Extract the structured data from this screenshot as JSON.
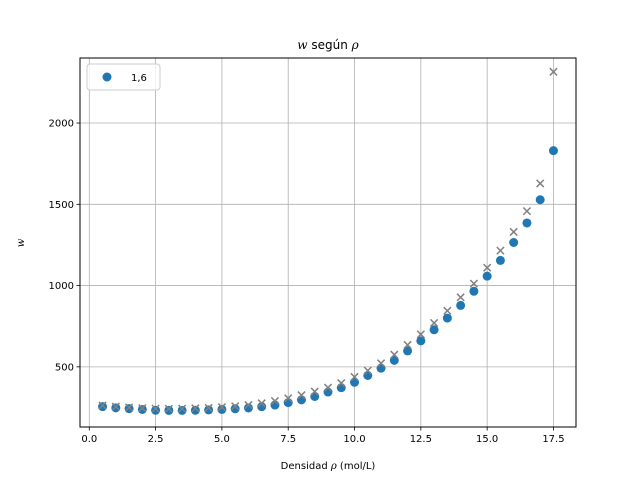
{
  "chart_data": {
    "type": "scatter",
    "title": "w según ρ",
    "title_parts": {
      "var": "w",
      "middle": " según ",
      "symbol": "ρ"
    },
    "xlabel": "Densidad ρ (mol/L)",
    "xlabel_parts": {
      "prefix": "Densidad ",
      "symbol": "ρ",
      "suffix": " (mol/L)"
    },
    "ylabel": "w",
    "xlim": [
      -0.35,
      18.35
    ],
    "ylim": [
      130,
      2400
    ],
    "xticks": [
      0.0,
      2.5,
      5.0,
      7.5,
      10.0,
      12.5,
      15.0,
      17.5
    ],
    "xtick_labels": [
      "0.0",
      "2.5",
      "5.0",
      "7.5",
      "10.0",
      "12.5",
      "15.0",
      "17.5"
    ],
    "yticks": [
      500,
      1000,
      1500,
      2000
    ],
    "ytick_labels": [
      "500",
      "1000",
      "1500",
      "2000"
    ],
    "grid": true,
    "legend_position": "top-left",
    "series": [
      {
        "name": "1,6",
        "marker": "circle",
        "color": "#1f77b4",
        "x": [
          0.5,
          1.0,
          1.5,
          2.0,
          2.5,
          3.0,
          3.5,
          4.0,
          4.5,
          5.0,
          5.5,
          6.0,
          6.5,
          7.0,
          7.5,
          8.0,
          8.5,
          9.0,
          9.5,
          10.0,
          10.5,
          11.0,
          11.5,
          12.0,
          12.5,
          13.0,
          13.5,
          14.0,
          14.5,
          15.0,
          15.5,
          16.0,
          16.5,
          17.0,
          17.5
        ],
        "y": [
          255,
          248,
          243,
          238,
          233,
          232,
          232,
          233,
          235,
          238,
          242,
          247,
          255,
          265,
          280,
          297,
          318,
          345,
          372,
          405,
          447,
          492,
          540,
          598,
          660,
          728,
          800,
          878,
          965,
          1058,
          1155,
          1265,
          1385,
          1528,
          1830
        ]
      },
      {
        "name": "",
        "marker": "x",
        "color": "#808080",
        "x": [
          0.5,
          1.0,
          1.5,
          2.0,
          2.5,
          3.0,
          3.5,
          4.0,
          4.5,
          5.0,
          5.5,
          6.0,
          6.5,
          7.0,
          7.5,
          8.0,
          8.5,
          9.0,
          9.5,
          10.0,
          10.5,
          11.0,
          11.5,
          12.0,
          12.5,
          13.0,
          13.5,
          14.0,
          14.5,
          15.0,
          15.5,
          16.0,
          16.5,
          17.0,
          17.5
        ],
        "y": [
          262,
          255,
          250,
          246,
          243,
          242,
          243,
          245,
          248,
          252,
          258,
          265,
          276,
          290,
          307,
          326,
          348,
          372,
          400,
          438,
          477,
          522,
          575,
          635,
          700,
          770,
          845,
          928,
          1012,
          1110,
          1215,
          1330,
          1458,
          1628,
          2315
        ]
      }
    ]
  }
}
